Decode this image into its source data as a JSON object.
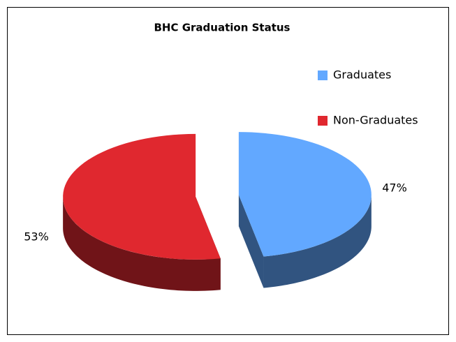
{
  "chart_data": {
    "type": "pie",
    "title": "BHC Graduation Status",
    "categories": [
      "Graduates",
      "Non-Graduates"
    ],
    "values": [
      47,
      53
    ],
    "value_labels": [
      "47%",
      "53%"
    ],
    "colors": [
      "#62a8ff",
      "#e0282f"
    ],
    "legend": "right"
  }
}
